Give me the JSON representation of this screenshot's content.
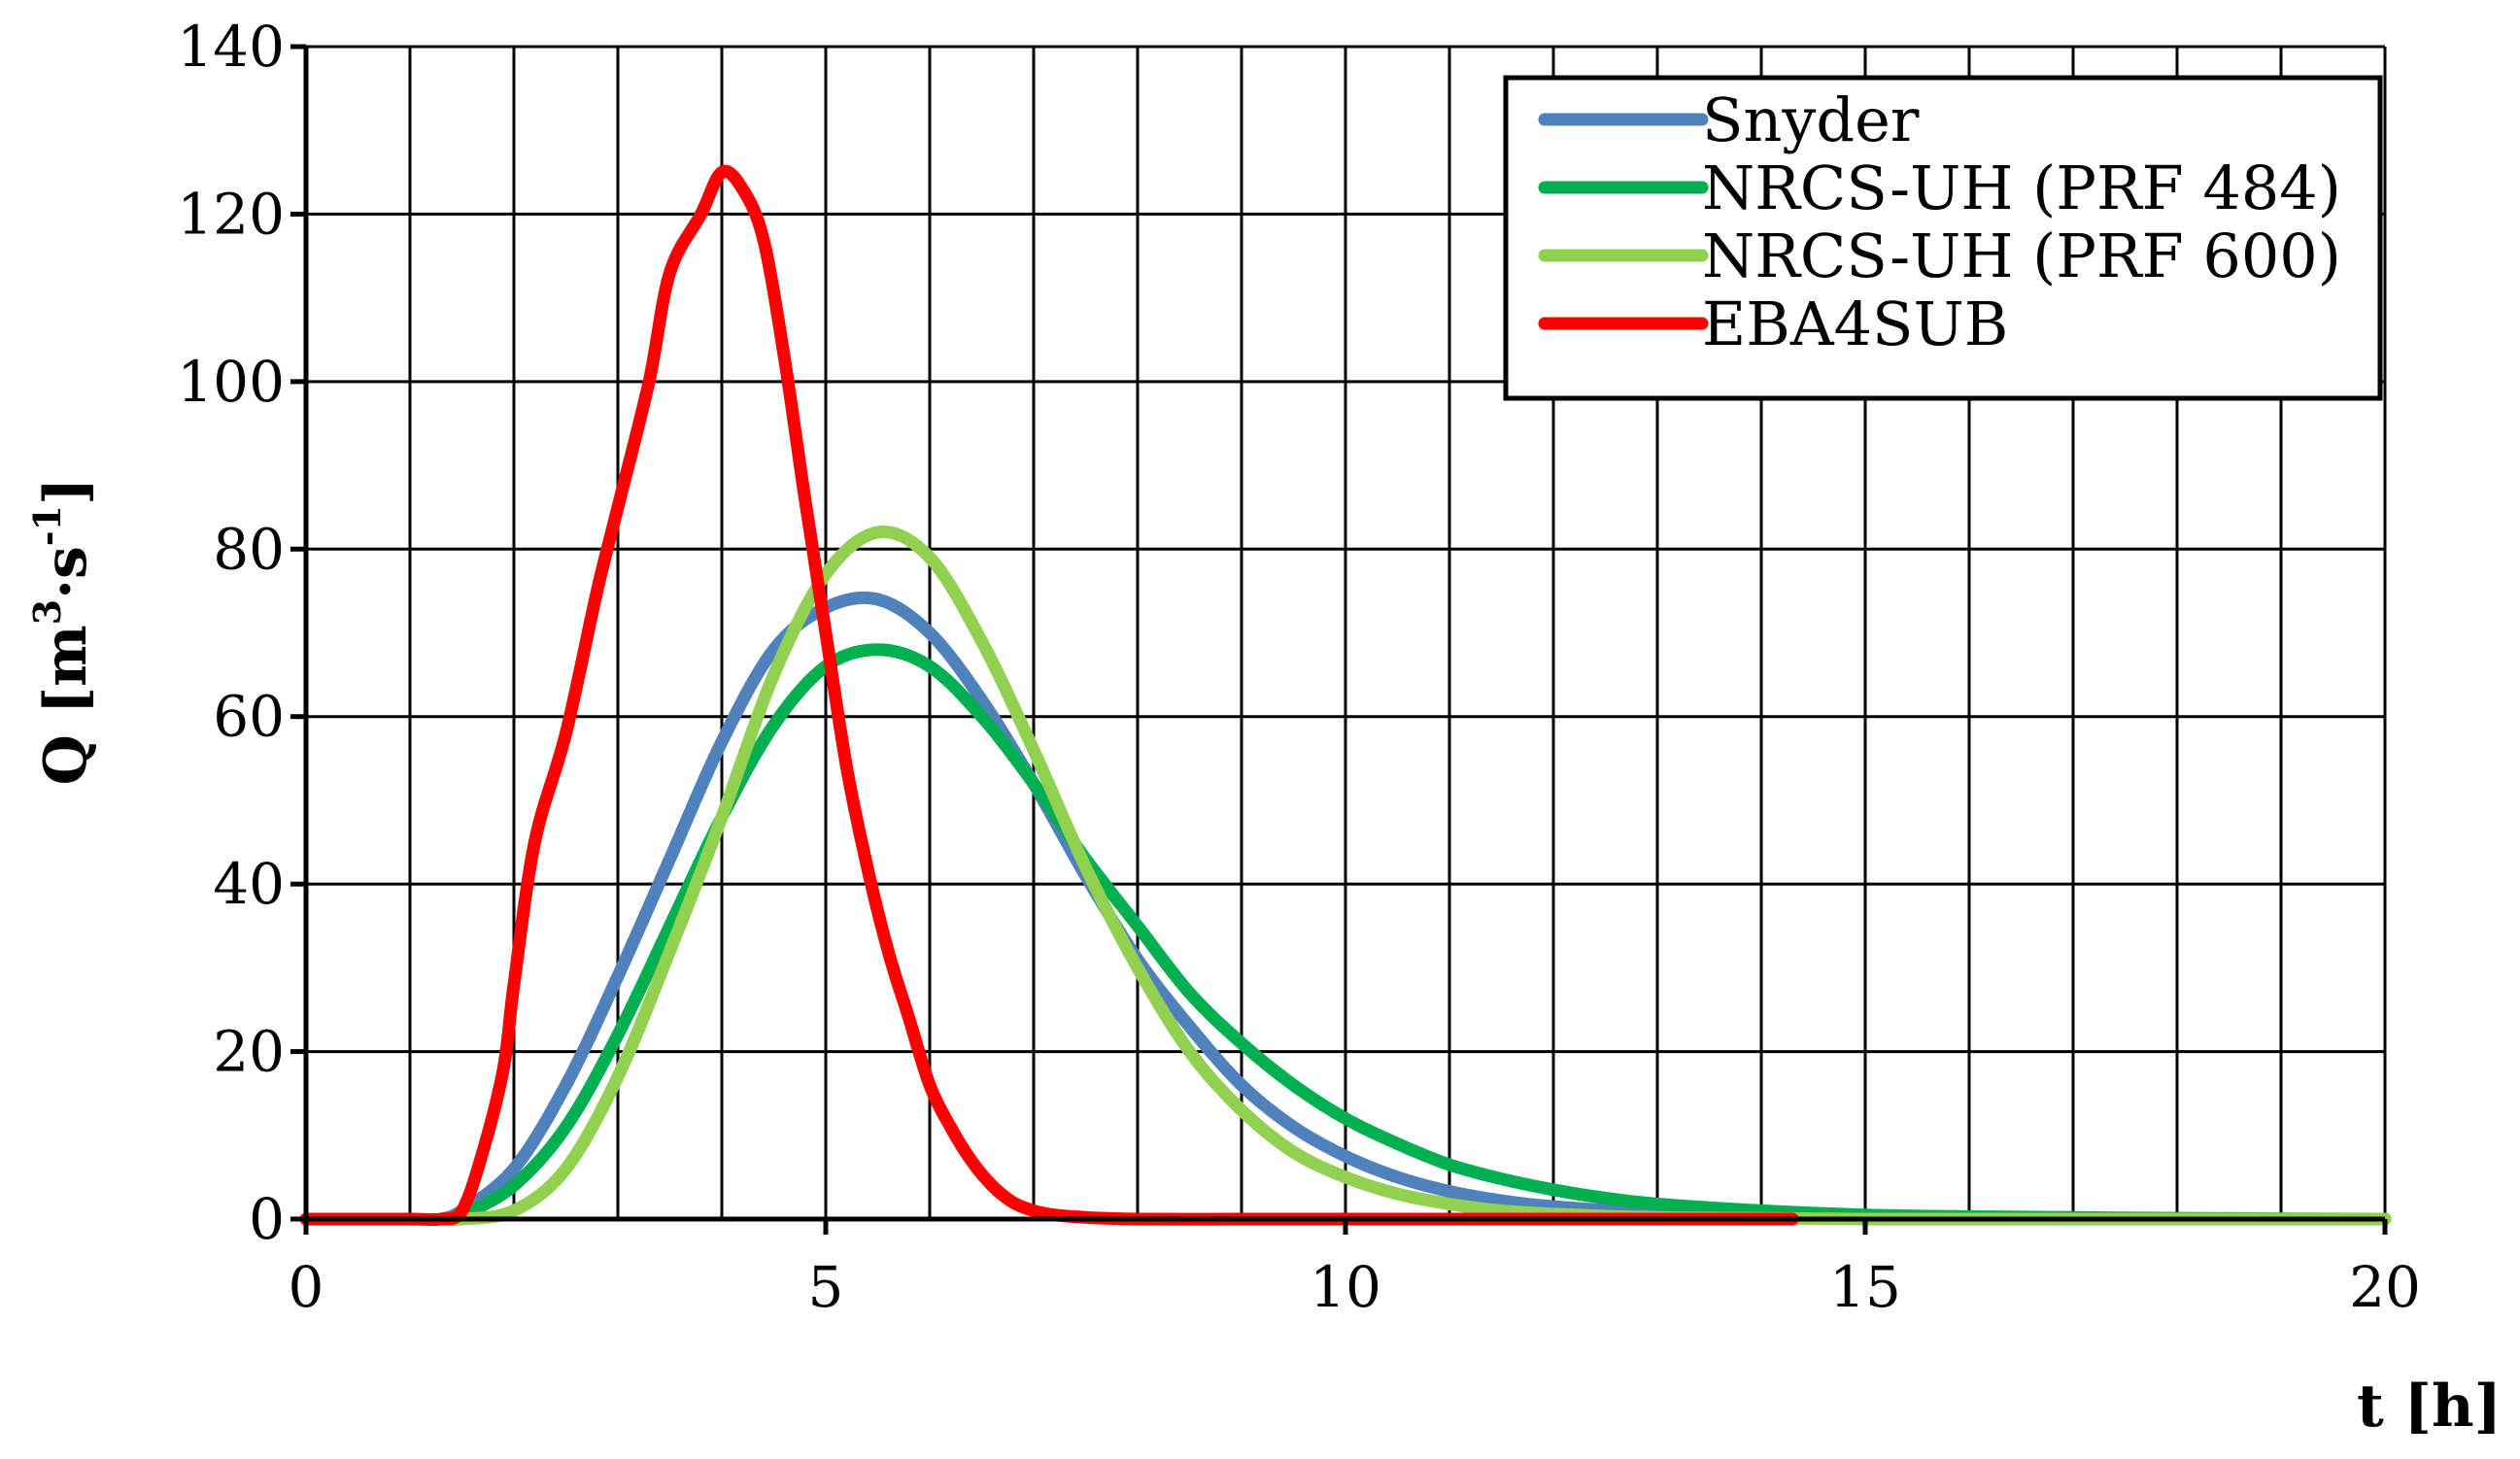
{
  "chart_data": {
    "type": "line",
    "xlabel": "t [h]",
    "ylabel_main": "Q [m",
    "ylabel_sup1": "3",
    "ylabel_mid": "·s",
    "ylabel_sup2": "-1",
    "ylabel_end": "]",
    "xlim": [
      0,
      20
    ],
    "ylim": [
      0,
      140
    ],
    "xticks": [
      0,
      5,
      10,
      15,
      20
    ],
    "xtick_labels": [
      "0",
      "5",
      "10",
      "15",
      "20"
    ],
    "yticks": [
      0,
      20,
      40,
      60,
      80,
      100,
      120,
      140
    ],
    "ytick_labels": [
      "0",
      "20",
      "40",
      "60",
      "80",
      "100",
      "120",
      "140"
    ],
    "grid": true,
    "grid_x_step": 1,
    "grid_y_step": 20,
    "legend_position": "top-right",
    "series": [
      {
        "name": "Snyder",
        "color": "#4F81BD",
        "x": [
          1.3,
          1.5,
          2.0,
          2.5,
          3.0,
          3.5,
          4.0,
          4.5,
          5.0,
          5.5,
          6.0,
          6.5,
          7.0,
          7.5,
          8.0,
          8.5,
          9.0,
          9.5,
          10.0,
          10.5,
          11.0,
          11.5,
          12.0,
          13.0,
          14.0,
          15.0,
          16.0,
          17.0,
          18.0,
          19.0,
          20.0
        ],
        "y": [
          0,
          1,
          6,
          16,
          29,
          43,
          57,
          68,
          73,
          74,
          70,
          62,
          52,
          41,
          31,
          23,
          16,
          11,
          7.5,
          5,
          3.3,
          2.2,
          1.5,
          0.7,
          0.3,
          0.15,
          0.1,
          0.05,
          0,
          0,
          0
        ]
      },
      {
        "name": "NRCS-UH (PRF 484)",
        "color": "#00B050",
        "x": [
          1.3,
          1.5,
          2.0,
          2.5,
          3.0,
          3.5,
          4.0,
          4.5,
          5.0,
          5.5,
          6.0,
          6.5,
          7.0,
          7.5,
          8.0,
          8.5,
          9.0,
          9.5,
          10.0,
          10.5,
          11.0,
          11.5,
          12.0,
          12.5,
          13.0,
          14.0,
          15.0,
          16.0,
          17.0,
          18.0,
          20.0
        ],
        "y": [
          0,
          0.5,
          4,
          11,
          22,
          35,
          48,
          59,
          66,
          68,
          66,
          60,
          52,
          43,
          35,
          27,
          21,
          16,
          12,
          9,
          6.5,
          4.8,
          3.5,
          2.5,
          1.8,
          1,
          0.5,
          0.3,
          0.2,
          0.1,
          0
        ]
      },
      {
        "name": "NRCS-UH (PRF 600)",
        "color": "#92D050",
        "x": [
          1.3,
          1.5,
          2.0,
          2.5,
          3.0,
          3.5,
          4.0,
          4.5,
          5.0,
          5.5,
          6.0,
          6.5,
          7.0,
          7.5,
          8.0,
          8.5,
          9.0,
          9.5,
          10.0,
          10.5,
          11.0,
          11.5,
          12.0,
          13.0,
          14.0,
          15.0,
          16.0,
          17.0,
          18.0,
          19.0,
          20.0
        ],
        "y": [
          0,
          0,
          1,
          6,
          17,
          32,
          48,
          65,
          77,
          82,
          79,
          69,
          56,
          42,
          30,
          20,
          13,
          8,
          5,
          3,
          1.8,
          1,
          0.6,
          0.2,
          0.1,
          0,
          0,
          0,
          0,
          0,
          0
        ]
      },
      {
        "name": "EBA4SUB",
        "color": "#FF0000",
        "x": [
          0,
          1.0,
          1.3,
          1.5,
          1.7,
          1.9,
          2.0,
          2.2,
          2.5,
          2.8,
          3.0,
          3.3,
          3.5,
          3.8,
          4.0,
          4.2,
          4.4,
          4.6,
          4.8,
          5.0,
          5.2,
          5.4,
          5.6,
          5.8,
          6.0,
          6.2,
          6.4,
          6.6,
          6.8,
          7.0,
          7.2,
          7.5,
          8.0,
          9.0,
          10.0,
          12.0,
          14.3
        ],
        "y": [
          0,
          0,
          0,
          1,
          8,
          18,
          28,
          45,
          58,
          75,
          85,
          100,
          113,
          120,
          125,
          123,
          117,
          103,
          86,
          70,
          54,
          42,
          32,
          24,
          16,
          11,
          7,
          4,
          2,
          1,
          0.5,
          0.2,
          0,
          0,
          0,
          0,
          0
        ]
      }
    ]
  }
}
